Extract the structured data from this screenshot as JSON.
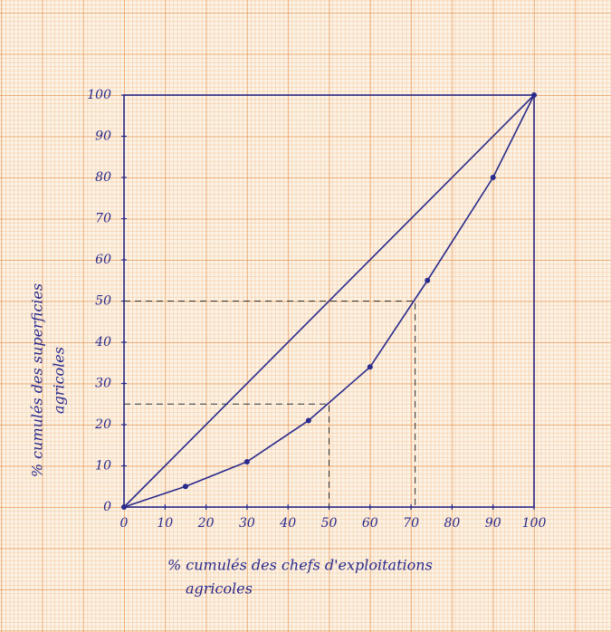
{
  "chart_data": {
    "type": "line",
    "xlabel": [
      "% cumulés des chefs d'exploitations",
      "agricoles"
    ],
    "ylabel": [
      "% cumulés des superficies",
      "agricoles"
    ],
    "xlim": [
      0,
      100
    ],
    "ylim": [
      0,
      100
    ],
    "xticks": [
      0,
      10,
      20,
      30,
      40,
      50,
      60,
      70,
      80,
      90,
      100
    ],
    "yticks": [
      0,
      10,
      20,
      30,
      40,
      50,
      60,
      70,
      80,
      90,
      100
    ],
    "series": [
      {
        "color": "#2a2a8c",
        "markers": true,
        "x": [
          0,
          15,
          30,
          45,
          60,
          74,
          90,
          100
        ],
        "values": [
          0,
          5,
          11,
          21,
          34,
          55,
          80,
          100
        ]
      },
      {
        "color": "#2a2a8c",
        "markers": false,
        "x": [
          0,
          100
        ],
        "values": [
          0,
          100
        ]
      }
    ],
    "reference_lines": [
      {
        "x": 71,
        "y": 50
      },
      {
        "x": 50,
        "y": 25
      }
    ]
  }
}
